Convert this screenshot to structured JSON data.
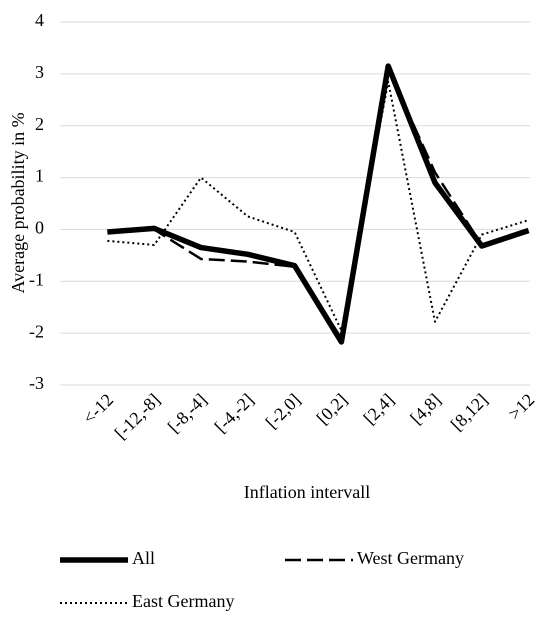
{
  "chart_data": {
    "type": "line",
    "x_label": "Inflation intervall",
    "y_label": "Average probability in %",
    "categories": [
      "<-12",
      "[-12,-8]",
      "[-8,-4]",
      "[-4,-2]",
      "[-2,0]",
      "[0,2]",
      "[2,4]",
      "[4,8]",
      "[8,12]",
      ">12"
    ],
    "series": [
      {
        "name": "All",
        "color": "#000000",
        "style": "solid",
        "values": [
          -0.05,
          0.02,
          -0.35,
          -0.48,
          -0.7,
          -2.17,
          3.15,
          0.9,
          -0.32,
          -0.02
        ]
      },
      {
        "name": "West Germany",
        "color": "#000000",
        "style": "dashed",
        "values": [
          -0.05,
          0.0,
          -0.57,
          -0.62,
          -0.72,
          -2.1,
          3.1,
          1.1,
          -0.3,
          -0.05
        ]
      },
      {
        "name": "East Germany",
        "color": "#000000",
        "style": "dotted",
        "values": [
          -0.22,
          -0.3,
          1.0,
          0.25,
          -0.05,
          -1.95,
          2.85,
          -1.78,
          -0.1,
          0.18
        ]
      }
    ],
    "ylim": [
      -3,
      4
    ],
    "yticks": [
      -3,
      -2,
      -1,
      0,
      1,
      2,
      3,
      4
    ],
    "grid": true
  }
}
